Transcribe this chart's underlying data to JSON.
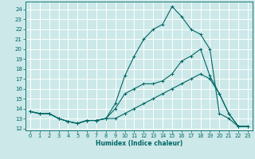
{
  "title": "",
  "xlabel": "Humidex (Indice chaleur)",
  "bg_color": "#cce8e8",
  "grid_color": "#ffffff",
  "line_color": "#006666",
  "xlim": [
    -0.5,
    23.5
  ],
  "ylim": [
    11.8,
    24.8
  ],
  "xticks": [
    0,
    1,
    2,
    3,
    4,
    5,
    6,
    7,
    8,
    9,
    10,
    11,
    12,
    13,
    14,
    15,
    16,
    17,
    18,
    19,
    20,
    21,
    22,
    23
  ],
  "yticks": [
    12,
    13,
    14,
    15,
    16,
    17,
    18,
    19,
    20,
    21,
    22,
    23,
    24
  ],
  "line1_x": [
    0,
    1,
    2,
    3,
    4,
    5,
    6,
    7,
    8,
    9,
    10,
    11,
    12,
    13,
    14,
    15,
    16,
    17,
    18,
    19,
    20,
    21,
    22,
    23
  ],
  "line1_y": [
    13.7,
    13.5,
    13.5,
    13.0,
    12.7,
    12.5,
    12.8,
    12.8,
    13.0,
    14.5,
    17.3,
    19.3,
    21.0,
    22.0,
    22.5,
    24.3,
    23.3,
    22.0,
    21.5,
    20.0,
    13.5,
    13.0,
    12.2,
    12.2
  ],
  "line2_x": [
    0,
    1,
    2,
    3,
    4,
    5,
    6,
    7,
    8,
    9,
    10,
    11,
    12,
    13,
    14,
    15,
    16,
    17,
    18,
    19,
    20,
    21,
    22,
    23
  ],
  "line2_y": [
    13.7,
    13.5,
    13.5,
    13.0,
    12.7,
    12.5,
    12.8,
    12.8,
    13.0,
    14.0,
    15.5,
    16.0,
    16.5,
    16.5,
    16.8,
    17.5,
    18.8,
    19.3,
    20.0,
    17.3,
    15.5,
    13.5,
    12.2,
    12.2
  ],
  "line3_x": [
    0,
    1,
    2,
    3,
    4,
    5,
    6,
    7,
    8,
    9,
    10,
    11,
    12,
    13,
    14,
    15,
    16,
    17,
    18,
    19,
    20,
    21,
    22,
    23
  ],
  "line3_y": [
    13.7,
    13.5,
    13.5,
    13.0,
    12.7,
    12.5,
    12.8,
    12.8,
    13.0,
    13.0,
    13.5,
    14.0,
    14.5,
    15.0,
    15.5,
    16.0,
    16.5,
    17.0,
    17.5,
    17.0,
    15.5,
    13.5,
    12.2,
    12.2
  ]
}
